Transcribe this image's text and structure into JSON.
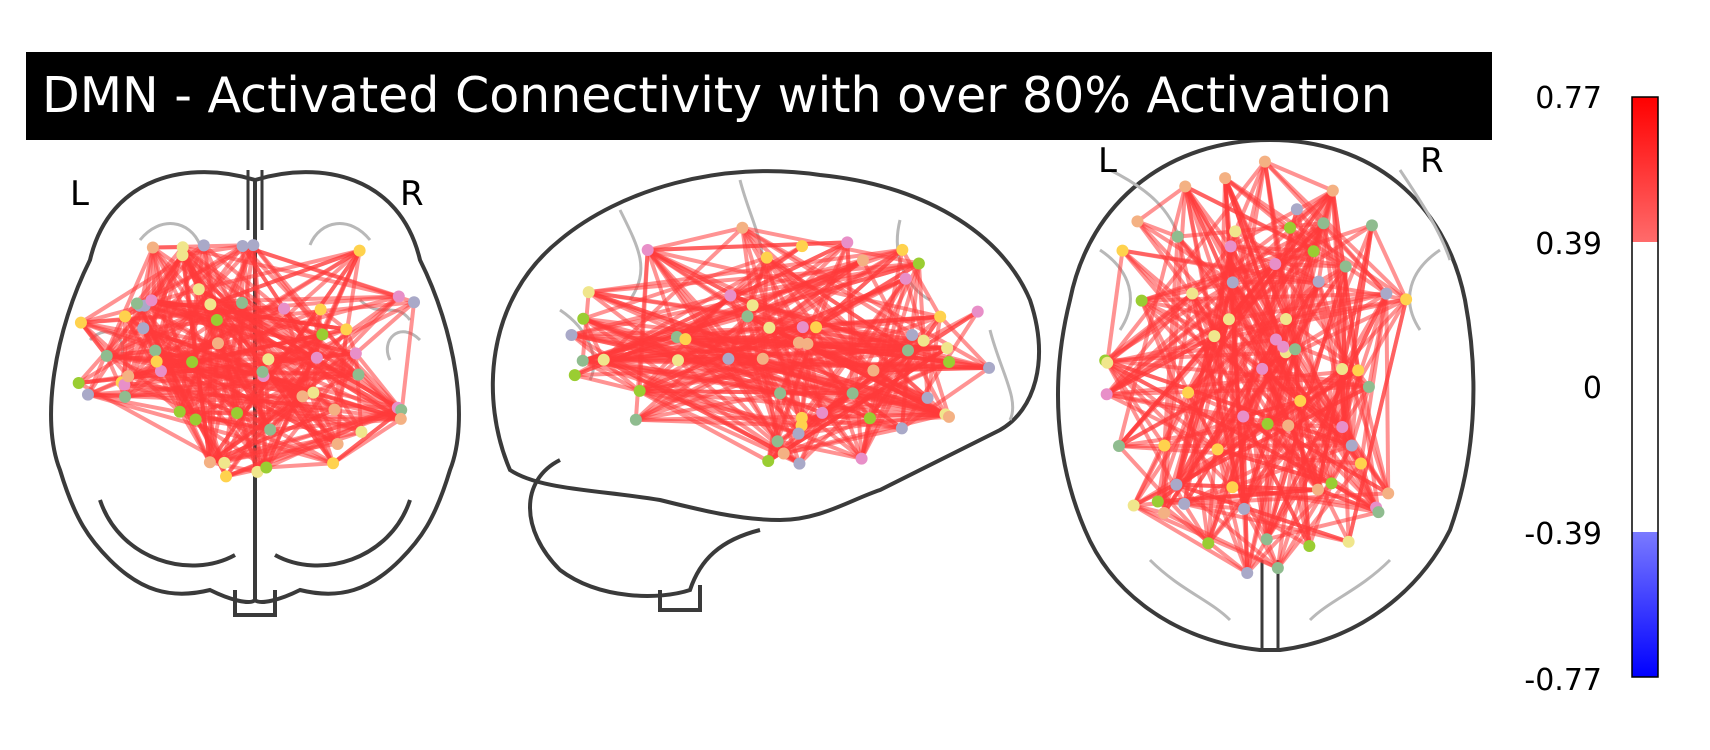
{
  "title": "DMN - Activated Connectivity with over 80% Activation",
  "views": {
    "coronal": {
      "left_label": "L",
      "right_label": "R"
    },
    "sagittal": {},
    "axial": {
      "left_label": "L",
      "right_label": "R"
    }
  },
  "colorbar": {
    "ticks": [
      "0.77",
      "0.39",
      "0",
      "-0.39",
      "-0.77"
    ],
    "min": -0.77,
    "max": 0.77,
    "threshold": 0.39,
    "colormap": [
      "#0000ff",
      "#ffffff",
      "#ff0000"
    ]
  },
  "colors": {
    "edge": "#ff3b3b",
    "outline": "#3a3a3a",
    "gyri": "#b8b8b8",
    "node_palette": [
      "#8fbc8f",
      "#f0e68c",
      "#ffd24d",
      "#e88fc8",
      "#a9a9c8",
      "#f4b183",
      "#9acd32"
    ]
  }
}
